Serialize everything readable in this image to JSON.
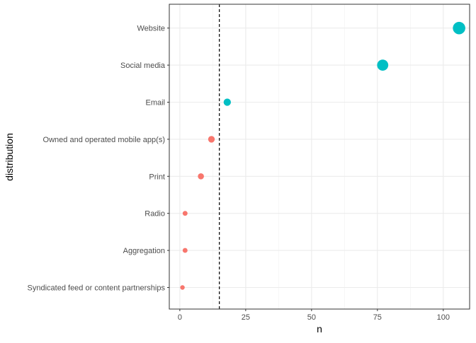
{
  "chart_data": {
    "type": "scatter",
    "xlabel": "n",
    "ylabel": "distribution",
    "xlim": [
      -4,
      110
    ],
    "x_ticks": [
      0,
      25,
      50,
      75,
      100
    ],
    "x_tick_labels": [
      "0",
      "25",
      "50",
      "75",
      "100"
    ],
    "grid": true,
    "categories": [
      "Syndicated feed or content partnerships",
      "Aggregation",
      "Radio",
      "Print",
      "Owned and operated mobile app(s)",
      "Email",
      "Social media",
      "Website"
    ],
    "values": [
      1,
      2,
      2,
      8,
      12,
      18,
      77,
      106
    ],
    "reference_line": 15,
    "colors": {
      "below_reference": "#F8766D",
      "above_reference": "#00BFC4",
      "reference_line": "#000000",
      "panel_border": "#333333",
      "grid_major": "#EBEBEB",
      "grid_minor": "#F2F2F2"
    }
  }
}
